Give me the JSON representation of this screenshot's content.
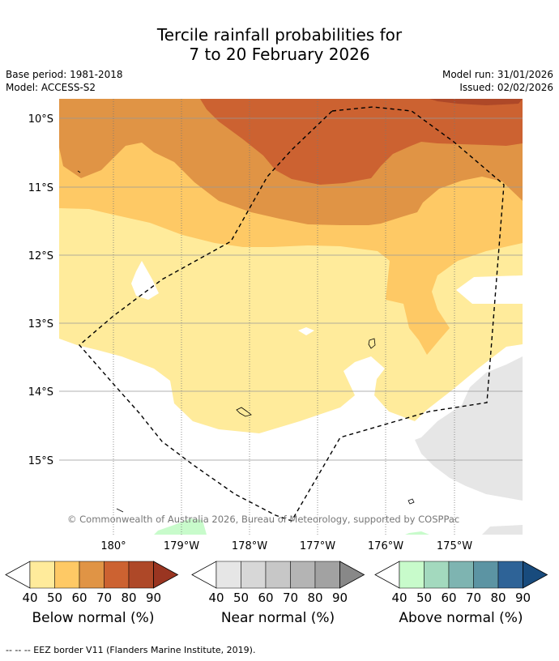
{
  "title_line1": "Tercile rainfall probabilities for",
  "title_line2": "7 to 20 February 2026",
  "base_period": "Base period: 1981-2018",
  "model": "Model: ACCESS-S2",
  "model_run": "Model run: 31/01/2026",
  "issued": "Issued: 02/02/2026",
  "lat_labels": [
    "10°S",
    "11°S",
    "12°S",
    "13°S",
    "14°S",
    "15°S"
  ],
  "lon_labels": [
    "180°",
    "179°W",
    "178°W",
    "177°W",
    "176°W",
    "175°W"
  ],
  "copyright": "© Commonwealth of Australia 2026, Bureau of Meteorology, supported by COSPPac",
  "colorbars": [
    {
      "title": "Below normal (%)",
      "ticks": [
        "40",
        "50",
        "60",
        "70",
        "80",
        "90"
      ],
      "colors": [
        "#ffffff",
        "#ffeb9b",
        "#fec965",
        "#e09445",
        "#cc6231",
        "#ae4828",
        "#9a3521"
      ]
    },
    {
      "title": "Near normal (%)",
      "ticks": [
        "40",
        "50",
        "60",
        "70",
        "80",
        "90"
      ],
      "colors": [
        "#ffffff",
        "#e6e6e6",
        "#d7d7d7",
        "#c7c7c7",
        "#b4b4b4",
        "#a2a2a2",
        "#888888"
      ]
    },
    {
      "title": "Above normal (%)",
      "ticks": [
        "40",
        "50",
        "60",
        "70",
        "80",
        "90"
      ],
      "colors": [
        "#ffffff",
        "#c8fbcb",
        "#a3d9be",
        "#7eb4b1",
        "#5c94a3",
        "#2e6397",
        "#184b7d"
      ]
    }
  ],
  "footnote": "--  --  -- EEZ border V11 (Flanders Marine Institute, 2019)."
}
